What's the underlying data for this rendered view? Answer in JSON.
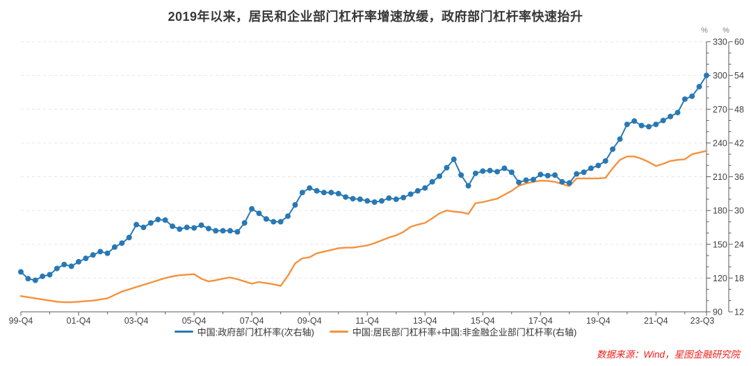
{
  "title": "2019年以来，居民和企业部门杠杆率增速放缓，政府部门杠杆率快速抬升",
  "source": "数据来源：Wind，星图金融研究院",
  "colors": {
    "government_line": "#2878B4",
    "household_corporate_line": "#F5913C",
    "source_text": "#ED1F1A",
    "axis_text": "#404040",
    "grid_line": "#E5E5E5"
  },
  "chart_data": {
    "type": "line",
    "title": "2019年以来，居民和企业部门杠杆率增速放缓，政府部门杠杆率快速抬升",
    "frequency": "quarterly",
    "x_start": "99-Q4",
    "x_end": "23-Q3",
    "n_points": 96,
    "grid": "horizontal-dashed",
    "legend_position": "bottom",
    "x_tick_labels": [
      "99-Q4",
      "01-Q4",
      "03-Q4",
      "05-Q4",
      "07-Q4",
      "09-Q4",
      "11-Q4",
      "13-Q4",
      "15-Q4",
      "17-Q4",
      "19-Q4",
      "21-Q4",
      "23-Q3"
    ],
    "x_tick_indices": [
      0,
      8,
      16,
      24,
      32,
      40,
      48,
      56,
      64,
      72,
      80,
      88,
      95
    ],
    "axes": {
      "right_inner": {
        "unit": "%",
        "min": 90,
        "max": 330,
        "major_step": 30,
        "minor_step": 10,
        "ticks": [
          90,
          120,
          150,
          180,
          210,
          240,
          270,
          300,
          330
        ]
      },
      "right_outer": {
        "unit": "%",
        "min": 12,
        "max": 60,
        "major_step": 6,
        "minor_step": 2,
        "ticks": [
          12,
          18,
          24,
          30,
          36,
          42,
          48,
          54,
          60
        ]
      }
    },
    "series": [
      {
        "name": "中国:政府部门杠杆率(次右轴)",
        "axis": "right_outer",
        "color": "#2878B4",
        "marker": "circle",
        "values": [
          19.1,
          17.9,
          17.6,
          18.3,
          18.6,
          19.7,
          20.4,
          20.1,
          20.9,
          21.5,
          22.1,
          22.7,
          22.4,
          23.5,
          24.2,
          25.2,
          27.5,
          27.0,
          27.8,
          28.4,
          28.3,
          27.2,
          26.7,
          27.0,
          26.9,
          27.4,
          26.8,
          26.4,
          26.4,
          26.4,
          26.2,
          27.8,
          30.3,
          29.5,
          28.5,
          28.0,
          28.0,
          29.0,
          31.0,
          33.2,
          34.0,
          33.5,
          33.2,
          33.2,
          33.0,
          32.4,
          32.1,
          32.0,
          31.7,
          31.5,
          31.7,
          32.2,
          32.0,
          32.3,
          32.9,
          33.5,
          34.0,
          35.1,
          36.1,
          37.6,
          39.1,
          36.3,
          34.4,
          36.6,
          37.0,
          37.1,
          36.9,
          37.5,
          36.8,
          35.0,
          35.4,
          35.5,
          36.4,
          36.2,
          36.3,
          35.1,
          34.9,
          36.5,
          36.8,
          37.5,
          38.0,
          38.8,
          40.9,
          42.7,
          45.3,
          45.9,
          45.1,
          44.9,
          45.3,
          46.0,
          46.7,
          47.4,
          49.8,
          50.3,
          52.0,
          54.0
        ]
      },
      {
        "name": "中国:居民部门杠杆率+中国:非金融企业部门杠杆率(右轴)",
        "axis": "right_inner",
        "color": "#F5913C",
        "marker": "none",
        "values": [
          104,
          103,
          102,
          101,
          100,
          99,
          98.5,
          98.5,
          99,
          99.5,
          100,
          101,
          102,
          105,
          108,
          110,
          112,
          114,
          116,
          118,
          120,
          121.5,
          122.5,
          123,
          123.5,
          119.5,
          117,
          118,
          119.5,
          120.5,
          119,
          117,
          115,
          116.5,
          115.5,
          114.5,
          113,
          122,
          133,
          137.5,
          138.5,
          142,
          143.5,
          145,
          146.5,
          147,
          147,
          148,
          149,
          151,
          153.5,
          156,
          158,
          161,
          165.5,
          167.5,
          169,
          173,
          177.5,
          180,
          179,
          178.5,
          177,
          186.5,
          187.5,
          189,
          190.5,
          194,
          197.5,
          202,
          204,
          205.5,
          206.5,
          206.3,
          205.5,
          203.5,
          201.6,
          208.5,
          208.5,
          208.5,
          208.5,
          209,
          217.5,
          225,
          228,
          228,
          226,
          223,
          219.5,
          221.5,
          224,
          225,
          225.5,
          230,
          231.5,
          233
        ]
      }
    ]
  }
}
